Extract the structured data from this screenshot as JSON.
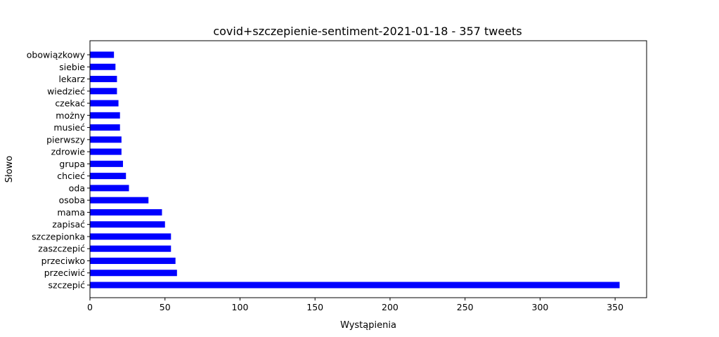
{
  "chart_data": {
    "type": "bar",
    "orientation": "horizontal",
    "title": "covid+szczepienie-sentiment-2021-01-18 - 357 tweets",
    "xlabel": "Wystąpienia",
    "ylabel": "Słowo",
    "xlim": [
      0,
      371
    ],
    "xticks": [
      0,
      50,
      100,
      150,
      200,
      250,
      300,
      350
    ],
    "grid": false,
    "bar_color": "#0000ff",
    "categories": [
      "szczepić",
      "przeciwić",
      "przeciwko",
      "zaszczepić",
      "szczepionka",
      "zapisać",
      "mama",
      "osoba",
      "oda",
      "chcieć",
      "grupa",
      "zdrowie",
      "pierwszy",
      "musieć",
      "możny",
      "czekać",
      "wiedzieć",
      "lekarz",
      "siebie",
      "obowiązkowy"
    ],
    "values": [
      353,
      58,
      57,
      54,
      54,
      50,
      48,
      39,
      26,
      24,
      22,
      21,
      21,
      20,
      20,
      19,
      18,
      18,
      17,
      16
    ]
  }
}
